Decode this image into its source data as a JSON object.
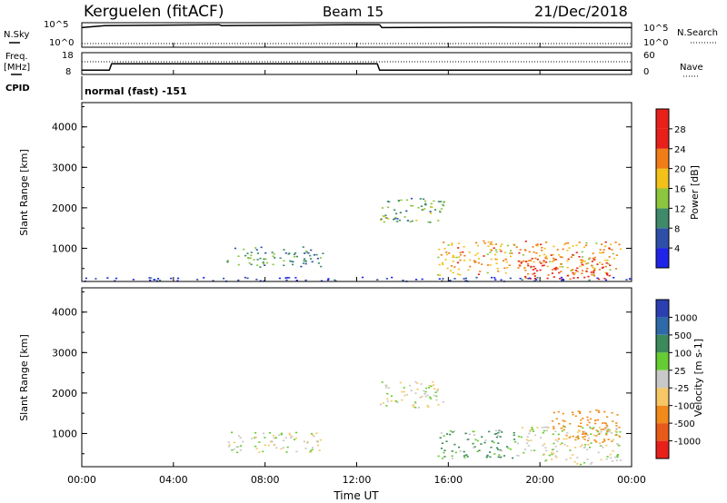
{
  "header": {
    "station": "Kerguelen (fitACF)",
    "beam": "Beam 15",
    "date": "21/Dec/2018"
  },
  "status_panels": {
    "nsky_label": "N.Sky",
    "nsearch_label": "N.Search",
    "freq_label_1": "Freq.",
    "freq_label_2": "[MHz]",
    "nave_label": "Nave",
    "cpid_label": "CPID",
    "cpid_value": "normal (fast) -151",
    "noise_left_ticks": [
      "10^5",
      "10^0"
    ],
    "noise_right_ticks": [
      "10^5",
      "10^0"
    ],
    "freq_ticks": [
      "18",
      "8"
    ],
    "nave_ticks": [
      "60",
      "0"
    ]
  },
  "x_axis": {
    "title": "Time UT",
    "ticks": [
      "00:00",
      "04:00",
      "08:00",
      "12:00",
      "16:00",
      "20:00",
      "00:00"
    ]
  },
  "y_axis": {
    "title": "Slant Range [km]",
    "ticks": [
      "1000",
      "2000",
      "3000",
      "4000"
    ]
  },
  "power_colorbar": {
    "title": "Power [dB]",
    "labels": [
      "4",
      "8",
      "12",
      "16",
      "20",
      "24",
      "28"
    ],
    "colors": [
      "#1f24e8",
      "#2e4fa8",
      "#3f8a6a",
      "#8cc63f",
      "#f2c21a",
      "#f07d18",
      "#e8201a",
      "#e8201a"
    ]
  },
  "velocity_colorbar": {
    "title": "Velocity [m s-1]",
    "labels": [
      "1000",
      "500",
      "100",
      "25",
      "-25",
      "-100",
      "-500",
      "-1000"
    ],
    "colors": [
      "#2b3fb0",
      "#2e6aa8",
      "#3c8a5a",
      "#66cc33",
      "#c8c8c8",
      "#f7c766",
      "#f08a1a",
      "#e85a1a",
      "#e8201a"
    ]
  },
  "chart_data": [
    {
      "type": "line",
      "title": "Kerguelen (fitACF)",
      "series": [
        {
          "name": "N.Sky",
          "x": [
            0,
            1,
            6,
            6.1,
            9,
            12,
            13,
            13.1,
            18,
            24
          ],
          "y": [
            4.0,
            4.4,
            4.6,
            4.4,
            4.5,
            4.6,
            4.6,
            4.0,
            4.1,
            4.0
          ]
        },
        {
          "name": "Freq.",
          "x": [
            0,
            1.2,
            1.3,
            12.9,
            13.0,
            24
          ],
          "y": [
            10.0,
            10.0,
            12.9,
            12.9,
            10.0,
            10.0
          ]
        },
        {
          "name": "Nave",
          "x": [
            0,
            24
          ],
          "y": [
            36,
            36
          ]
        }
      ]
    },
    {
      "type": "heatmap",
      "title": "Beam 15",
      "xlabel": "Time UT",
      "ylabel": "Slant Range [km]",
      "xlim": [
        0,
        24
      ],
      "ylim": [
        180,
        4600
      ],
      "colorbar": "Power [dB]",
      "features": [
        {
          "t0": 6.3,
          "t1": 10.5,
          "r0": 550,
          "r1": 1050,
          "level": 12
        },
        {
          "t0": 13.0,
          "t1": 15.8,
          "r0": 1650,
          "r1": 2300,
          "level": 14
        },
        {
          "t0": 15.5,
          "t1": 23.5,
          "r0": 350,
          "r1": 1200,
          "level": 22
        },
        {
          "t0": 19.0,
          "t1": 23.0,
          "r0": 250,
          "r1": 800,
          "level": 27
        },
        {
          "t0": 0.0,
          "t1": 24.0,
          "r0": 200,
          "r1": 300,
          "level": 6
        }
      ]
    },
    {
      "type": "heatmap",
      "title": "Beam 15",
      "xlabel": "Time UT",
      "ylabel": "Slant Range [km]",
      "xlim": [
        0,
        24
      ],
      "ylim": [
        180,
        4600
      ],
      "colorbar": "Velocity [m s-1]",
      "features": [
        {
          "t0": 6.3,
          "t1": 10.5,
          "r0": 550,
          "r1": 1050,
          "level": 0
        },
        {
          "t0": 13.0,
          "t1": 15.8,
          "r0": 1650,
          "r1": 2300,
          "level": 0
        },
        {
          "t0": 15.5,
          "t1": 19.0,
          "r0": 400,
          "r1": 1100,
          "level": 60
        },
        {
          "t0": 19.0,
          "t1": 23.5,
          "r0": 250,
          "r1": 1200,
          "level": 0
        },
        {
          "t0": 20.5,
          "t1": 23.5,
          "r0": 800,
          "r1": 1600,
          "level": -300
        }
      ]
    }
  ]
}
